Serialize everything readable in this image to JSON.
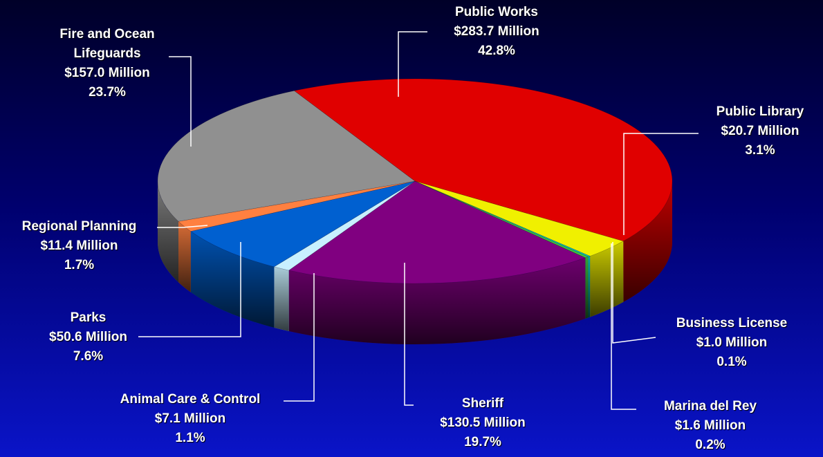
{
  "chart_data": {
    "type": "pie",
    "three_d": true,
    "legend": "none",
    "slices": [
      {
        "name": "Public Works",
        "amount": "$283.7 Million",
        "percent": "42.8%",
        "value": 283.7,
        "color": "#e00000"
      },
      {
        "name": "Public Library",
        "amount": "$20.7 Million",
        "percent": "3.1%",
        "value": 20.7,
        "color": "#f0f000"
      },
      {
        "name": "Business License",
        "amount": "$1.0 Million",
        "percent": "0.1%",
        "value": 1.0,
        "color": "#00c8c8"
      },
      {
        "name": "Marina del Rey",
        "amount": "$1.6 Million",
        "percent": "0.2%",
        "value": 1.6,
        "color": "#40c040"
      },
      {
        "name": "Sheriff",
        "amount": "$130.5 Million",
        "percent": "19.7%",
        "value": 130.5,
        "color": "#800080"
      },
      {
        "name": "Animal Care & Control",
        "amount": "$7.1 Million",
        "percent": "1.1%",
        "value": 7.1,
        "color": "#c8f0ff"
      },
      {
        "name": "Parks",
        "amount": "$50.6 Million",
        "percent": "7.6%",
        "value": 50.6,
        "color": "#0060d0"
      },
      {
        "name": "Regional Planning",
        "amount": "$11.4 Million",
        "percent": "1.7%",
        "value": 11.4,
        "color": "#ff8040"
      },
      {
        "name": "Fire and Ocean Lifeguards",
        "amount": "$157.0 Million",
        "percent": "23.7%",
        "value": 157.0,
        "color": "#909090"
      }
    ]
  },
  "labels": {
    "public_works": {
      "l1": "Public Works",
      "l2": "$283.7 Million",
      "l3": "42.8%"
    },
    "fire": {
      "l1": "Fire and Ocean",
      "l2": "Lifeguards",
      "l3": "$157.0 Million",
      "l4": "23.7%"
    },
    "library": {
      "l1": "Public Library",
      "l2": "$20.7 Million",
      "l3": "3.1%"
    },
    "regional": {
      "l1": "Regional Planning",
      "l2": "$11.4 Million",
      "l3": "1.7%"
    },
    "parks": {
      "l1": "Parks",
      "l2": "$50.6 Million",
      "l3": "7.6%"
    },
    "business": {
      "l1": "Business License",
      "l2": "$1.0 Million",
      "l3": "0.1%"
    },
    "animal": {
      "l1": "Animal Care & Control",
      "l2": "$7.1 Million",
      "l3": "1.1%"
    },
    "sheriff": {
      "l1": "Sheriff",
      "l2": "$130.5 Million",
      "l3": "19.7%"
    },
    "marina": {
      "l1": "Marina del Rey",
      "l2": "$1.6 Million",
      "l3": "0.2%"
    }
  }
}
